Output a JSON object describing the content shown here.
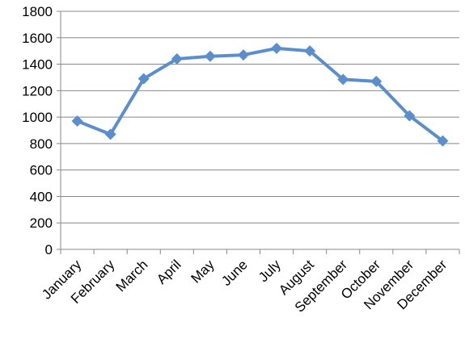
{
  "chart_data": {
    "type": "line",
    "categories": [
      "January",
      "February",
      "March",
      "April",
      "May",
      "June",
      "July",
      "August",
      "September",
      "October",
      "November",
      "December"
    ],
    "series": [
      {
        "values": [
          970,
          870,
          1290,
          1440,
          1460,
          1470,
          1520,
          1500,
          1285,
          1270,
          1010,
          820
        ],
        "color": "#5b8ecc",
        "marker": "diamond"
      }
    ],
    "ylim": [
      0,
      1800
    ],
    "yticks": [
      0,
      200,
      400,
      600,
      800,
      1000,
      1200,
      1400,
      1600,
      1800
    ],
    "ytick_labels": [
      "0",
      "200",
      "400",
      "600",
      "800",
      "1000",
      "1200",
      "1400",
      "1600",
      "1800"
    ],
    "grid": true,
    "grid_color": "#888888",
    "title": "",
    "xlabel": "",
    "ylabel": ""
  }
}
